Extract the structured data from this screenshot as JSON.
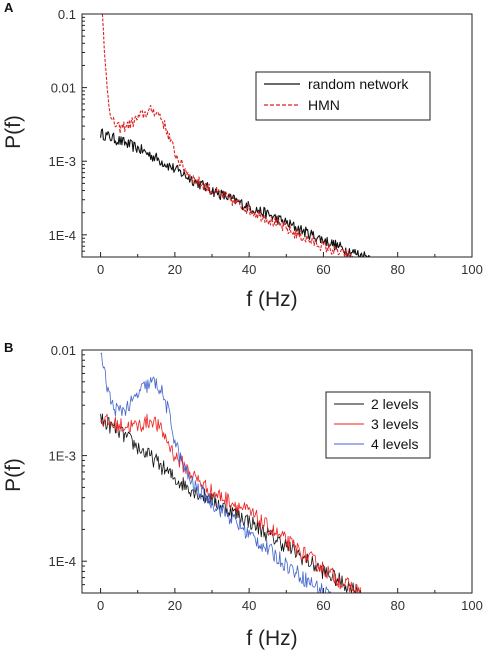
{
  "chart_data": [
    {
      "panel": "A",
      "type": "line",
      "xlabel": "f (Hz)",
      "ylabel": "P(f)",
      "xlim": [
        -5,
        100
      ],
      "ylim": [
        5e-05,
        0.1
      ],
      "yscale": "log",
      "xticks": [
        0,
        20,
        40,
        60,
        80,
        100
      ],
      "yticks": [
        {
          "v": 0.1,
          "label": "0.1"
        },
        {
          "v": 0.01,
          "label": "0.01"
        },
        {
          "v": 0.001,
          "label": "1E-3"
        },
        {
          "v": 0.0001,
          "label": "1E-4"
        }
      ],
      "legend_position": "top-right",
      "series": [
        {
          "name": "random network",
          "color": "#111111",
          "dash": "solid",
          "x": [
            0,
            5,
            10,
            15,
            20,
            25,
            30,
            35,
            40,
            45,
            50,
            55,
            60,
            65,
            70,
            73
          ],
          "y": [
            0.0024,
            0.0019,
            0.0015,
            0.0011,
            0.00078,
            0.00055,
            0.0004,
            0.00031,
            0.00024,
            0.00019,
            0.000145,
            0.00011,
            8.5e-05,
            6.6e-05,
            5.3e-05,
            5e-05
          ]
        },
        {
          "name": "HMN",
          "color": "#dd2222",
          "dash": "dashed",
          "x": [
            0.5,
            1,
            2,
            3,
            5,
            8,
            11,
            14,
            16,
            18,
            20,
            22,
            25,
            30,
            35,
            40,
            45,
            50,
            55,
            60,
            65,
            68
          ],
          "y": [
            0.1,
            0.03,
            0.008,
            0.0035,
            0.0028,
            0.0032,
            0.0042,
            0.005,
            0.0042,
            0.0025,
            0.0013,
            0.00085,
            0.00058,
            0.0004,
            0.0003,
            0.00022,
            0.000165,
            0.00012,
            9e-05,
            7e-05,
            5.5e-05,
            5e-05
          ]
        }
      ]
    },
    {
      "panel": "B",
      "type": "line",
      "xlabel": "f (Hz)",
      "ylabel": "P(f)",
      "xlim": [
        -5,
        100
      ],
      "ylim": [
        5e-05,
        0.01
      ],
      "yscale": "log",
      "xticks": [
        0,
        20,
        40,
        60,
        80,
        100
      ],
      "yticks": [
        {
          "v": 0.01,
          "label": "0.01"
        },
        {
          "v": 0.001,
          "label": "1E-3"
        },
        {
          "v": 0.0001,
          "label": "1E-4"
        }
      ],
      "legend_position": "right",
      "series": [
        {
          "name": "2 levels",
          "color": "#111111",
          "dash": "solid",
          "x": [
            0,
            5,
            10,
            15,
            20,
            25,
            30,
            35,
            40,
            45,
            50,
            55,
            60,
            65,
            70
          ],
          "y": [
            0.0022,
            0.0017,
            0.0012,
            0.00088,
            0.0006,
            0.00047,
            0.00038,
            0.0003,
            0.00024,
            0.00018,
            0.00014,
            0.000105,
            8e-05,
            6.3e-05,
            5e-05
          ]
        },
        {
          "name": "3 levels",
          "color": "#ee2222",
          "dash": "solid",
          "x": [
            0,
            3,
            6,
            10,
            14,
            17,
            20,
            25,
            30,
            35,
            40,
            45,
            50,
            55,
            60,
            65,
            70
          ],
          "y": [
            0.0022,
            0.002,
            0.0019,
            0.0019,
            0.0022,
            0.0016,
            0.001,
            0.00064,
            0.00045,
            0.00037,
            0.00029,
            0.00021,
            0.000155,
            0.000115,
            8.5e-05,
            6.3e-05,
            5e-05
          ]
        },
        {
          "name": "4 levels",
          "color": "#4466cc",
          "dash": "solid",
          "x": [
            0,
            1,
            3,
            5,
            8,
            11,
            14,
            16,
            18,
            20,
            22,
            25,
            30,
            35,
            40,
            45,
            50,
            55,
            60,
            62
          ],
          "y": [
            0.01,
            0.006,
            0.003,
            0.0026,
            0.003,
            0.0042,
            0.005,
            0.0044,
            0.0028,
            0.0014,
            0.00082,
            0.00052,
            0.00036,
            0.00026,
            0.00018,
            0.00013,
            9.3e-05,
            6.8e-05,
            5.2e-05,
            5e-05
          ]
        }
      ]
    }
  ]
}
